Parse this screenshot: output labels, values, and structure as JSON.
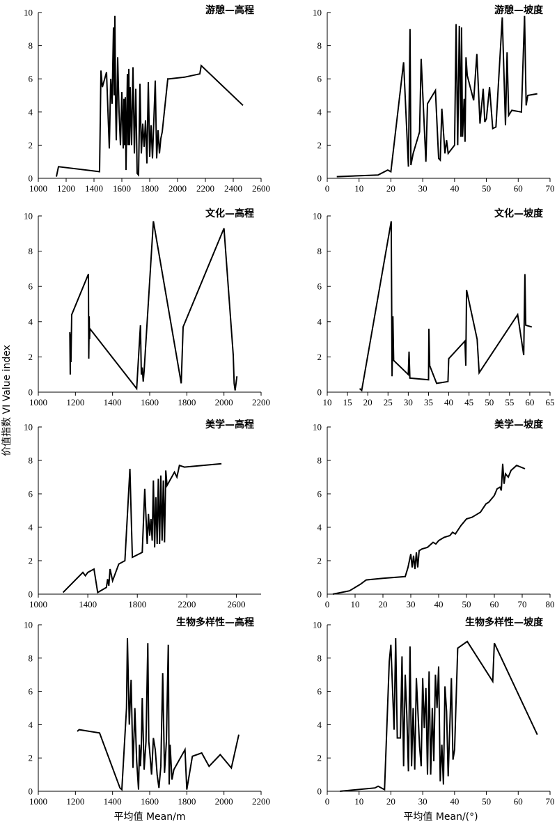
{
  "figure": {
    "ylabel": "价值指数 VI  Value index",
    "xlabel_left": "平均值 Mean/m",
    "xlabel_right": "平均值 Mean/(°)"
  },
  "chart_data": [
    {
      "type": "line",
      "title": "游憩—高程",
      "column": "left",
      "row": 0,
      "xlim": [
        1000,
        2600
      ],
      "xticks": [
        1000,
        1200,
        1400,
        1600,
        1800,
        2000,
        2200,
        2400,
        2600
      ],
      "ylim": [
        0,
        10
      ],
      "yticks": [
        0,
        2,
        4,
        6,
        8,
        10
      ],
      "x": [
        1130,
        1145,
        1440,
        1450,
        1460,
        1490,
        1510,
        1520,
        1530,
        1540,
        1545,
        1550,
        1555,
        1560,
        1570,
        1580,
        1590,
        1600,
        1610,
        1615,
        1620,
        1625,
        1630,
        1640,
        1645,
        1650,
        1655,
        1660,
        1670,
        1680,
        1690,
        1700,
        1710,
        1720,
        1730,
        1740,
        1750,
        1760,
        1770,
        1780,
        1790,
        1800,
        1810,
        1820,
        1840,
        1850,
        1860,
        1870,
        1880,
        1890,
        1930,
        1940,
        2050,
        2160,
        2170,
        2470
      ],
      "y": [
        0.1,
        0.7,
        0.4,
        6.5,
        5.5,
        6.4,
        1.8,
        6.0,
        4.5,
        9.1,
        5.0,
        9.8,
        4.6,
        2.3,
        7.3,
        4.0,
        2.0,
        5.2,
        1.8,
        4.8,
        2.0,
        4.9,
        0.5,
        6.3,
        2.0,
        6.6,
        2.0,
        5.5,
        2.0,
        6.7,
        1.5,
        5.4,
        0.3,
        0.2,
        5.7,
        1.5,
        3.3,
        1.9,
        3.5,
        0.9,
        5.8,
        1.3,
        3.2,
        1.2,
        5.9,
        1.2,
        2.9,
        1.5,
        2.4,
        2.8,
        6.0,
        6.0,
        6.1,
        6.3,
        6.8,
        4.4
      ]
    },
    {
      "type": "line",
      "title": "游憩—坡度",
      "column": "right",
      "row": 0,
      "xlim": [
        0,
        70
      ],
      "xticks": [
        0,
        10,
        20,
        30,
        40,
        50,
        60,
        70
      ],
      "ylim": [
        0,
        10
      ],
      "yticks": [
        0,
        2,
        4,
        6,
        8,
        10
      ],
      "x": [
        3,
        16,
        19,
        20,
        24,
        25.5,
        26,
        26.3,
        27,
        29,
        29.5,
        31,
        31.5,
        34,
        35,
        35.5,
        36,
        37,
        37.5,
        38,
        40,
        40.5,
        41,
        41.5,
        42,
        42.2,
        42.5,
        43,
        43.3,
        43.6,
        44,
        46,
        47,
        48,
        49,
        49.5,
        50,
        51,
        52,
        53,
        55,
        56,
        56.5,
        57,
        58,
        61,
        62,
        62.5,
        63,
        66
      ],
      "y": [
        0.1,
        0.2,
        0.5,
        0.4,
        7.0,
        0.7,
        9.0,
        0.8,
        1.5,
        2.8,
        7.2,
        1.0,
        4.5,
        5.3,
        1.2,
        1.1,
        4.2,
        1.5,
        2.3,
        1.5,
        2.0,
        9.3,
        2.0,
        9.2,
        2.5,
        9.1,
        2.5,
        4.8,
        2.2,
        7.3,
        6.2,
        4.7,
        7.5,
        3.3,
        5.4,
        3.4,
        3.6,
        5.5,
        3.0,
        3.1,
        9.7,
        3.2,
        7.6,
        3.8,
        4.1,
        4.0,
        9.8,
        4.4,
        5.0,
        5.1
      ]
    },
    {
      "type": "line",
      "title": "文化—高程",
      "column": "left",
      "row": 1,
      "xlim": [
        1000,
        2200
      ],
      "xticks": [
        1000,
        1200,
        1400,
        1600,
        1800,
        2000,
        2200
      ],
      "ylim": [
        0,
        10
      ],
      "yticks": [
        0,
        2,
        4,
        6,
        8,
        10
      ],
      "x": [
        1170,
        1172,
        1174,
        1176,
        1180,
        1270,
        1272,
        1274,
        1276,
        1278,
        1530,
        1550,
        1555,
        1560,
        1565,
        1570,
        1620,
        1770,
        1780,
        2000,
        2050,
        2055,
        2060,
        2070
      ],
      "y": [
        3.4,
        1.0,
        3.3,
        1.7,
        4.4,
        6.7,
        1.9,
        4.3,
        3.0,
        3.6,
        0.2,
        3.8,
        1.0,
        1.4,
        0.6,
        1.2,
        9.7,
        0.5,
        3.7,
        9.3,
        2.1,
        0.5,
        0.1,
        0.9
      ]
    },
    {
      "type": "line",
      "title": "文化—坡度",
      "column": "right",
      "row": 1,
      "xlim": [
        10,
        65
      ],
      "xticks": [
        10,
        15,
        20,
        25,
        30,
        35,
        40,
        45,
        50,
        55,
        60,
        65
      ],
      "ylim": [
        0,
        10
      ],
      "yticks": [
        0,
        2,
        4,
        6,
        8,
        10
      ],
      "x": [
        18,
        18.5,
        25.8,
        26,
        26.2,
        26.4,
        30,
        30.2,
        30.4,
        35,
        35.1,
        35.3,
        37,
        39.8,
        40,
        44,
        44.2,
        44.4,
        47,
        47.5,
        57,
        58.5,
        58.8,
        59,
        60.5
      ],
      "y": [
        0.2,
        0.1,
        9.7,
        0.9,
        4.3,
        1.8,
        1.0,
        2.3,
        0.8,
        0.7,
        3.6,
        1.5,
        0.5,
        0.6,
        1.9,
        2.9,
        1.5,
        5.8,
        3.0,
        1.1,
        4.4,
        2.1,
        6.7,
        3.8,
        3.7
      ]
    },
    {
      "type": "line",
      "title": "美学—高程",
      "column": "left",
      "row": 2,
      "xlim": [
        1000,
        2800
      ],
      "xticks": [
        1000,
        1400,
        1800,
        2200,
        2600
      ],
      "ylim": [
        0,
        10
      ],
      "yticks": [
        0,
        2,
        4,
        6,
        8,
        10
      ],
      "x": [
        1200,
        1360,
        1380,
        1400,
        1450,
        1480,
        1550,
        1560,
        1570,
        1580,
        1600,
        1650,
        1700,
        1740,
        1760,
        1840,
        1860,
        1880,
        1890,
        1900,
        1910,
        1920,
        1930,
        1940,
        1950,
        1960,
        1970,
        1980,
        1990,
        2000,
        2010,
        2020,
        2030,
        2040,
        2100,
        2120,
        2140,
        2180,
        2480
      ],
      "y": [
        0.1,
        1.3,
        1.1,
        1.3,
        1.5,
        0.1,
        0.4,
        0.9,
        0.5,
        1.5,
        0.8,
        1.8,
        2.0,
        7.5,
        2.2,
        2.5,
        6.3,
        3.0,
        4.8,
        3.5,
        4.5,
        3.2,
        6.8,
        2.8,
        5.8,
        3.0,
        6.9,
        3.0,
        7.1,
        3.2,
        6.8,
        3.1,
        7.4,
        6.5,
        7.3,
        7.0,
        7.7,
        7.6,
        7.8
      ]
    },
    {
      "type": "line",
      "title": "美学—坡度",
      "column": "right",
      "row": 2,
      "xlim": [
        0,
        80
      ],
      "xticks": [
        0,
        10,
        20,
        30,
        40,
        50,
        60,
        70,
        80
      ],
      "ylim": [
        0,
        10
      ],
      "yticks": [
        0,
        2,
        4,
        6,
        8,
        10
      ],
      "x": [
        2,
        5,
        8,
        10,
        12,
        14,
        20,
        28,
        29,
        30,
        30.5,
        31,
        31.5,
        32,
        32.5,
        33,
        34,
        36,
        38,
        39,
        40,
        42,
        44,
        45,
        46,
        48,
        49,
        50,
        52,
        54,
        55,
        57,
        58,
        60,
        61,
        62,
        62.5,
        63,
        63.5,
        64,
        65,
        66,
        68,
        71
      ],
      "y": [
        0.0,
        0.1,
        0.2,
        0.4,
        0.6,
        0.85,
        0.95,
        1.05,
        1.6,
        2.4,
        1.6,
        2.3,
        1.5,
        2.5,
        1.6,
        2.6,
        2.7,
        2.8,
        3.1,
        3.0,
        3.2,
        3.4,
        3.5,
        3.7,
        3.6,
        4.1,
        4.3,
        4.5,
        4.6,
        4.8,
        4.9,
        5.4,
        5.5,
        5.9,
        6.3,
        6.4,
        6.2,
        7.8,
        6.6,
        7.2,
        7.0,
        7.4,
        7.7,
        7.5
      ]
    },
    {
      "type": "line",
      "title": "生物多样性—高程",
      "column": "left",
      "row": 3,
      "xlim": [
        1000,
        2200
      ],
      "xticks": [
        1000,
        1200,
        1400,
        1600,
        1800,
        2000,
        2200
      ],
      "ylim": [
        0,
        10
      ],
      "yticks": [
        0,
        2,
        4,
        6,
        8,
        10
      ],
      "x": [
        1210,
        1220,
        1330,
        1440,
        1450,
        1475,
        1480,
        1490,
        1500,
        1510,
        1520,
        1530,
        1540,
        1545,
        1550,
        1555,
        1560,
        1570,
        1580,
        1590,
        1595,
        1600,
        1610,
        1620,
        1630,
        1640,
        1650,
        1660,
        1670,
        1680,
        1690,
        1700,
        1705,
        1710,
        1720,
        1730,
        1790,
        1800,
        1830,
        1880,
        1920,
        1980,
        2040,
        2080
      ],
      "y": [
        3.6,
        3.7,
        3.5,
        0.2,
        0.1,
        5.0,
        9.2,
        4.0,
        6.7,
        1.4,
        5.0,
        1.8,
        0.1,
        2.8,
        1.5,
        2.7,
        5.6,
        1.3,
        3.0,
        8.9,
        3.0,
        2.4,
        1.0,
        3.2,
        2.5,
        1.0,
        0.2,
        1.5,
        7.1,
        1.1,
        3.0,
        8.8,
        0.4,
        2.8,
        0.7,
        1.3,
        2.5,
        0.1,
        2.1,
        2.3,
        1.5,
        2.2,
        1.4,
        3.4
      ]
    },
    {
      "type": "line",
      "title": "生物多样性—坡度",
      "column": "right",
      "row": 3,
      "xlim": [
        0,
        70
      ],
      "xticks": [
        0,
        10,
        20,
        30,
        40,
        50,
        60,
        70
      ],
      "ylim": [
        0,
        10
      ],
      "yticks": [
        0,
        2,
        4,
        6,
        8,
        10
      ],
      "x": [
        4,
        15,
        16,
        17,
        18,
        19.5,
        20,
        21,
        21.5,
        22,
        23,
        23.5,
        24,
        24.5,
        25,
        25.5,
        26,
        26.5,
        27,
        27.5,
        28,
        29,
        29.5,
        30,
        30.5,
        31,
        31.5,
        32,
        32.5,
        33,
        33.5,
        34,
        34.5,
        35,
        35.5,
        36,
        36.5,
        37,
        37.5,
        38,
        39,
        39.5,
        40,
        41,
        44,
        52,
        52.5,
        66
      ],
      "y": [
        0.0,
        0.2,
        0.3,
        0.2,
        0.1,
        7.8,
        8.8,
        3.7,
        9.2,
        3.2,
        3.2,
        8.1,
        1.5,
        7.0,
        4.6,
        1.2,
        8.7,
        1.5,
        5.0,
        1.3,
        6.8,
        2.7,
        1.5,
        6.8,
        3.8,
        6.2,
        1.0,
        7.2,
        1.0,
        5.0,
        1.8,
        7.0,
        5.0,
        7.5,
        0.6,
        2.8,
        0.4,
        6.3,
        4.8,
        0.9,
        6.8,
        1.9,
        2.5,
        8.6,
        9.0,
        6.6,
        8.9,
        3.4
      ]
    }
  ]
}
